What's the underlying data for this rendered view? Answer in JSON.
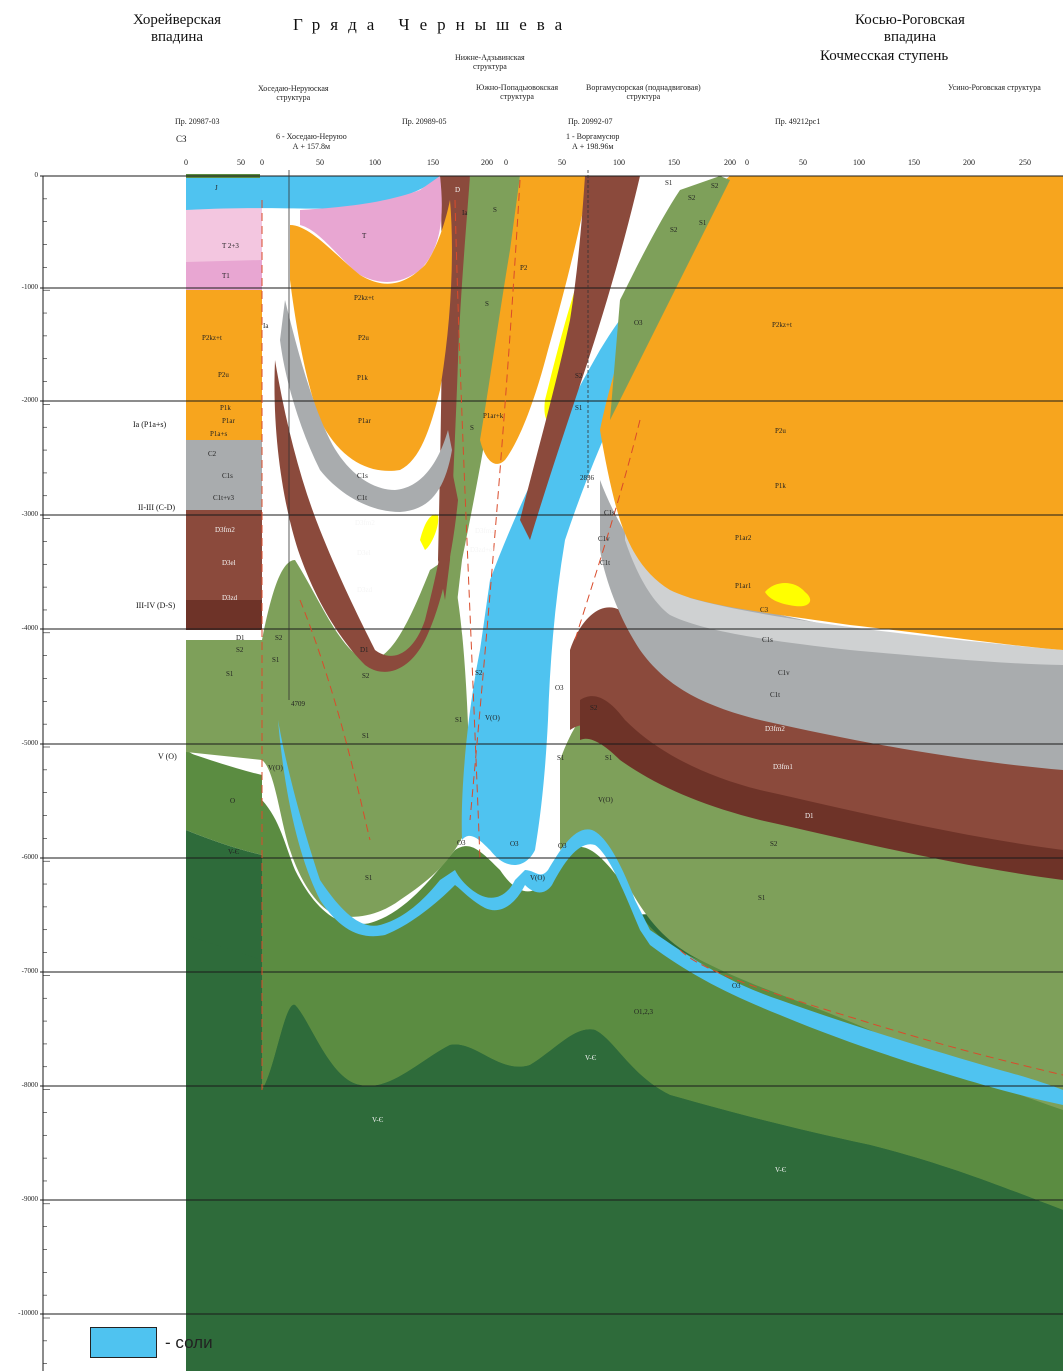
{
  "header": {
    "region_left": [
      "Хорейверская",
      "впадина"
    ],
    "ridge_title": "Гряда Чернышева",
    "region_right": [
      "Косью-Роговская",
      "впадина"
    ],
    "region_right_sub": "Кочмесская ступень",
    "structures": {
      "khosedayu": [
        "Хоседаю-Неруюская",
        "структура"
      ],
      "nizhne": [
        "Нижне-Адзьвинская",
        "структура"
      ],
      "yuzhno": [
        "Южно-Попадьювокская",
        "структура"
      ],
      "vorgamusyur": [
        "Воргамусюрская (поднадвиговая)",
        "структура"
      ],
      "usino": "Усино-Роговская структура"
    },
    "profiles": [
      "Пр. 20987-03",
      "Пр. 20989-05",
      "Пр. 20992-07",
      "Пр. 49212рс1"
    ],
    "direction": "СЗ",
    "wells": {
      "w6": [
        "6 - Хоседаю-Неруюо",
        "А + 157.8м"
      ],
      "w1": [
        "1 - Воргамусюр",
        "А + 198.96м"
      ]
    }
  },
  "distance_ticks": {
    "p1": [
      "0",
      "50",
      "0"
    ],
    "p2": [
      "50",
      "100",
      "150",
      "200",
      "0"
    ],
    "p3": [
      "50",
      "100",
      "150",
      "200",
      "0"
    ],
    "p4": [
      "50",
      "100",
      "150",
      "200",
      "250"
    ]
  },
  "depth_axis": [
    "0",
    "-1000",
    "-2000",
    "-3000",
    "-4000",
    "-5000",
    "-6000",
    "-7000",
    "-8000",
    "-9000",
    "-10000"
  ],
  "horizons": [
    "Ia (P1a+s)",
    "II-III (C-D)",
    "III-IV (D-S)",
    "V (O)"
  ],
  "units": {
    "J": "J",
    "T23": "T 2+3",
    "T1": "T1",
    "T": "T",
    "D": "D",
    "P2kz": "P2kz+t",
    "P2u": "P2u",
    "P1k": "P1k",
    "P1ar": "P1ar",
    "P1as": "P1a+s",
    "C3": "C3",
    "C2": "C2",
    "C1s": "C1s",
    "C1tv": "C1t+v3",
    "C1v": "C1v",
    "C1t": "C1t",
    "D3fm2": "D3fm2",
    "D3el": "D3el",
    "D3zd": "D3zd",
    "D1": "D1",
    "S2": "S2",
    "S1": "S1",
    "O": "O",
    "O3": "O3",
    "VO": "V(O)",
    "VE": "V-Є",
    "Ia": "Ia",
    "S": "S",
    "P2": "P2",
    "P1k2": "P1ar+k",
    "P2kzt": "P2kz+t",
    "P1ar2": "P1ar2",
    "P1ar1": "P1ar1",
    "O123": "O1,2,3",
    "D3fm1": "D3fm1",
    "D3zdel": "D3zd+el",
    "well_depth_1": "4709",
    "well_depth_2": "2836"
  },
  "legend": {
    "label": "- соли"
  },
  "colors": {
    "orange": "#f7a51e",
    "pink": "#e8a6d2",
    "lightpink": "#f3c6e0",
    "cyan": "#4fc3f0",
    "brown": "#8b4a3c",
    "darkbrown": "#6e3328",
    "grey": "#a9acae",
    "lightgrey": "#cfd1d2",
    "green": "#7ea05a",
    "lightgreen": "#8faf66",
    "darkgreen": "#2e6b3a",
    "yellow": "#ffff00"
  }
}
